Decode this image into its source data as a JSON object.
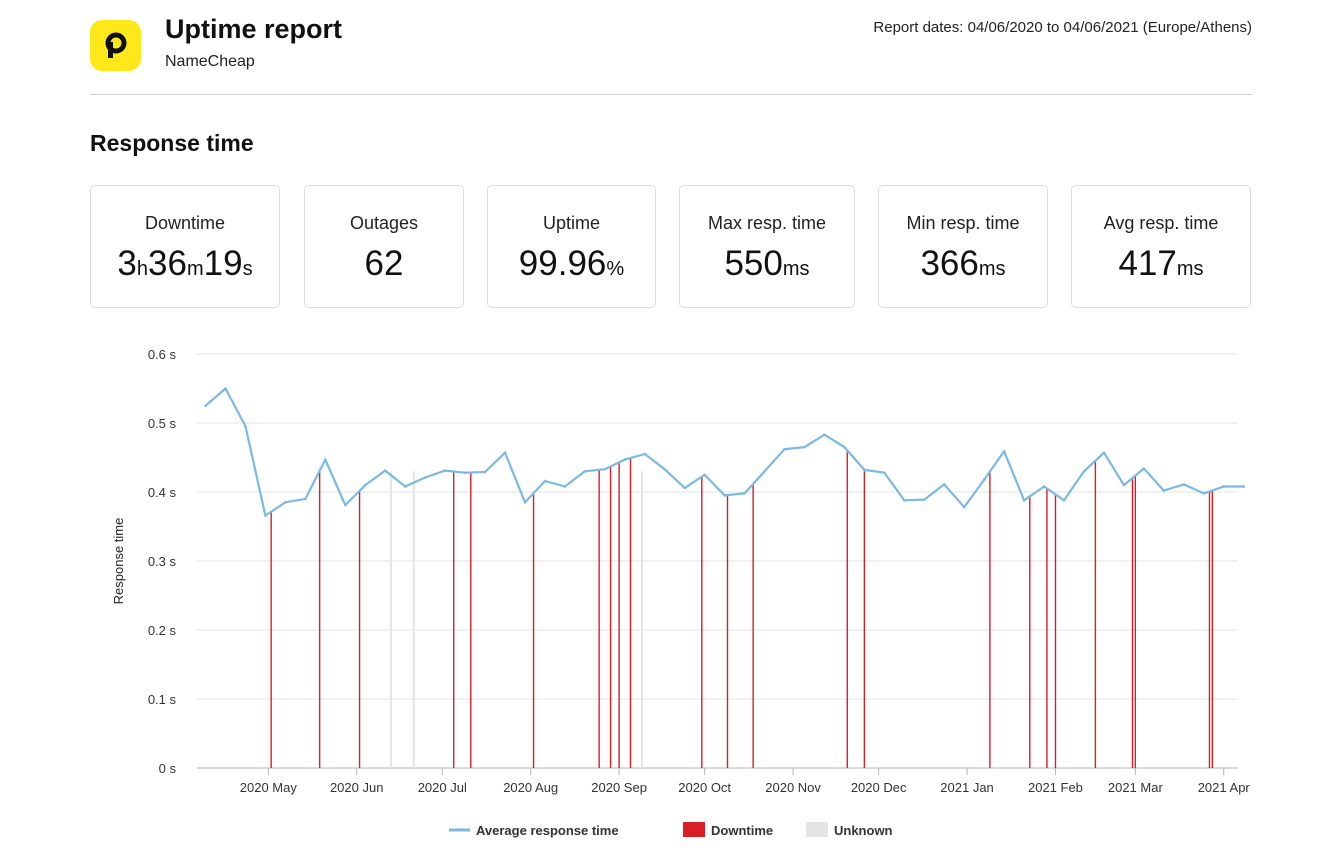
{
  "header": {
    "title": "Uptime report",
    "subtitle": "NameCheap",
    "report_dates": "Report dates: 04/06/2020 to 04/06/2021 (Europe/Athens)",
    "logo_letter": "P",
    "logo_color": "#ffe81a"
  },
  "section_title": "Response time",
  "stats": {
    "downtime": {
      "label": "Downtime",
      "h": "3",
      "h_unit": "h",
      "m": "36",
      "m_unit": "m",
      "s": "19",
      "s_unit": "s"
    },
    "outages": {
      "label": "Outages",
      "value": "62"
    },
    "uptime": {
      "label": "Uptime",
      "value": "99.96",
      "unit": "%"
    },
    "max_resp": {
      "label": "Max resp. time",
      "value": "550",
      "unit": "ms"
    },
    "min_resp": {
      "label": "Min resp. time",
      "value": "366",
      "unit": "ms"
    },
    "avg_resp": {
      "label": "Avg resp. time",
      "value": "417",
      "unit": "ms"
    }
  },
  "colors": {
    "line": "#7bb9e3",
    "downtime": "#d81f26",
    "unknown": "#e4e4e4",
    "grid": "#e3e3e3"
  },
  "chart_data": {
    "type": "line",
    "ylabel": "Response time",
    "ylim": [
      0,
      0.6
    ],
    "y_ticks": [
      "0 s",
      "0.1 s",
      "0.2 s",
      "0.3 s",
      "0.4 s",
      "0.5 s",
      "0.6 s"
    ],
    "x_range": [
      "2020-04-06",
      "2021-04-06"
    ],
    "x_ticks": [
      {
        "date": "2020-05-01",
        "label": "2020 May"
      },
      {
        "date": "2020-06-01",
        "label": "2020 Jun"
      },
      {
        "date": "2020-07-01",
        "label": "2020 Jul"
      },
      {
        "date": "2020-08-01",
        "label": "2020 Aug"
      },
      {
        "date": "2020-09-01",
        "label": "2020 Sep"
      },
      {
        "date": "2020-10-01",
        "label": "2020 Oct"
      },
      {
        "date": "2020-11-01",
        "label": "2020 Nov"
      },
      {
        "date": "2020-12-01",
        "label": "2020 Dec"
      },
      {
        "date": "2021-01-01",
        "label": "2021 Jan"
      },
      {
        "date": "2021-02-01",
        "label": "2021 Feb"
      },
      {
        "date": "2021-03-01",
        "label": "2021 Mar"
      },
      {
        "date": "2021-04-01",
        "label": "2021 Apr"
      }
    ],
    "series": [
      {
        "name": "Average response time",
        "points": [
          [
            "2020-04-09",
            0.525
          ],
          [
            "2020-04-16",
            0.55
          ],
          [
            "2020-04-23",
            0.495
          ],
          [
            "2020-04-30",
            0.366
          ],
          [
            "2020-05-07",
            0.385
          ],
          [
            "2020-05-14",
            0.39
          ],
          [
            "2020-05-21",
            0.447
          ],
          [
            "2020-05-28",
            0.381
          ],
          [
            "2020-06-04",
            0.41
          ],
          [
            "2020-06-11",
            0.431
          ],
          [
            "2020-06-18",
            0.408
          ],
          [
            "2020-06-25",
            0.421
          ],
          [
            "2020-07-02",
            0.431
          ],
          [
            "2020-07-09",
            0.428
          ],
          [
            "2020-07-16",
            0.429
          ],
          [
            "2020-07-23",
            0.457
          ],
          [
            "2020-07-30",
            0.385
          ],
          [
            "2020-08-06",
            0.416
          ],
          [
            "2020-08-13",
            0.408
          ],
          [
            "2020-08-20",
            0.43
          ],
          [
            "2020-08-27",
            0.433
          ],
          [
            "2020-09-03",
            0.447
          ],
          [
            "2020-09-10",
            0.455
          ],
          [
            "2020-09-17",
            0.433
          ],
          [
            "2020-09-24",
            0.406
          ],
          [
            "2020-10-01",
            0.425
          ],
          [
            "2020-10-08",
            0.395
          ],
          [
            "2020-10-15",
            0.398
          ],
          [
            "2020-10-22",
            0.43
          ],
          [
            "2020-10-29",
            0.462
          ],
          [
            "2020-11-05",
            0.465
          ],
          [
            "2020-11-12",
            0.483
          ],
          [
            "2020-11-19",
            0.465
          ],
          [
            "2020-11-26",
            0.432
          ],
          [
            "2020-12-03",
            0.428
          ],
          [
            "2020-12-10",
            0.388
          ],
          [
            "2020-12-17",
            0.389
          ],
          [
            "2020-12-24",
            0.411
          ],
          [
            "2020-12-31",
            0.378
          ],
          [
            "2021-01-07",
            0.418
          ],
          [
            "2021-01-14",
            0.459
          ],
          [
            "2021-01-21",
            0.388
          ],
          [
            "2021-01-28",
            0.408
          ],
          [
            "2021-02-04",
            0.388
          ],
          [
            "2021-02-11",
            0.43
          ],
          [
            "2021-02-18",
            0.457
          ],
          [
            "2021-02-25",
            0.41
          ],
          [
            "2021-03-04",
            0.434
          ],
          [
            "2021-03-11",
            0.402
          ],
          [
            "2021-03-18",
            0.411
          ],
          [
            "2021-03-25",
            0.398
          ],
          [
            "2021-04-01",
            0.408
          ],
          [
            "2021-04-08",
            0.408
          ]
        ]
      }
    ],
    "downtime_dates": [
      "2020-05-02",
      "2020-05-19",
      "2020-06-02",
      "2020-07-05",
      "2020-07-11",
      "2020-08-02",
      "2020-08-25",
      "2020-08-29",
      "2020-09-01",
      "2020-09-05",
      "2020-09-30",
      "2020-10-09",
      "2020-10-18",
      "2020-11-20",
      "2020-11-26",
      "2021-01-09",
      "2021-01-23",
      "2021-01-29",
      "2021-02-01",
      "2021-02-15",
      "2021-02-28",
      "2021-03-01",
      "2021-03-27",
      "2021-03-28"
    ],
    "unknown_dates": [
      "2020-06-13",
      "2020-06-21",
      "2020-09-09"
    ],
    "legend": [
      {
        "label": "Average response time",
        "kind": "line"
      },
      {
        "label": "Downtime",
        "kind": "box"
      },
      {
        "label": "Unknown",
        "kind": "box"
      }
    ],
    "legend_position": "bottom-center",
    "grid": true
  }
}
